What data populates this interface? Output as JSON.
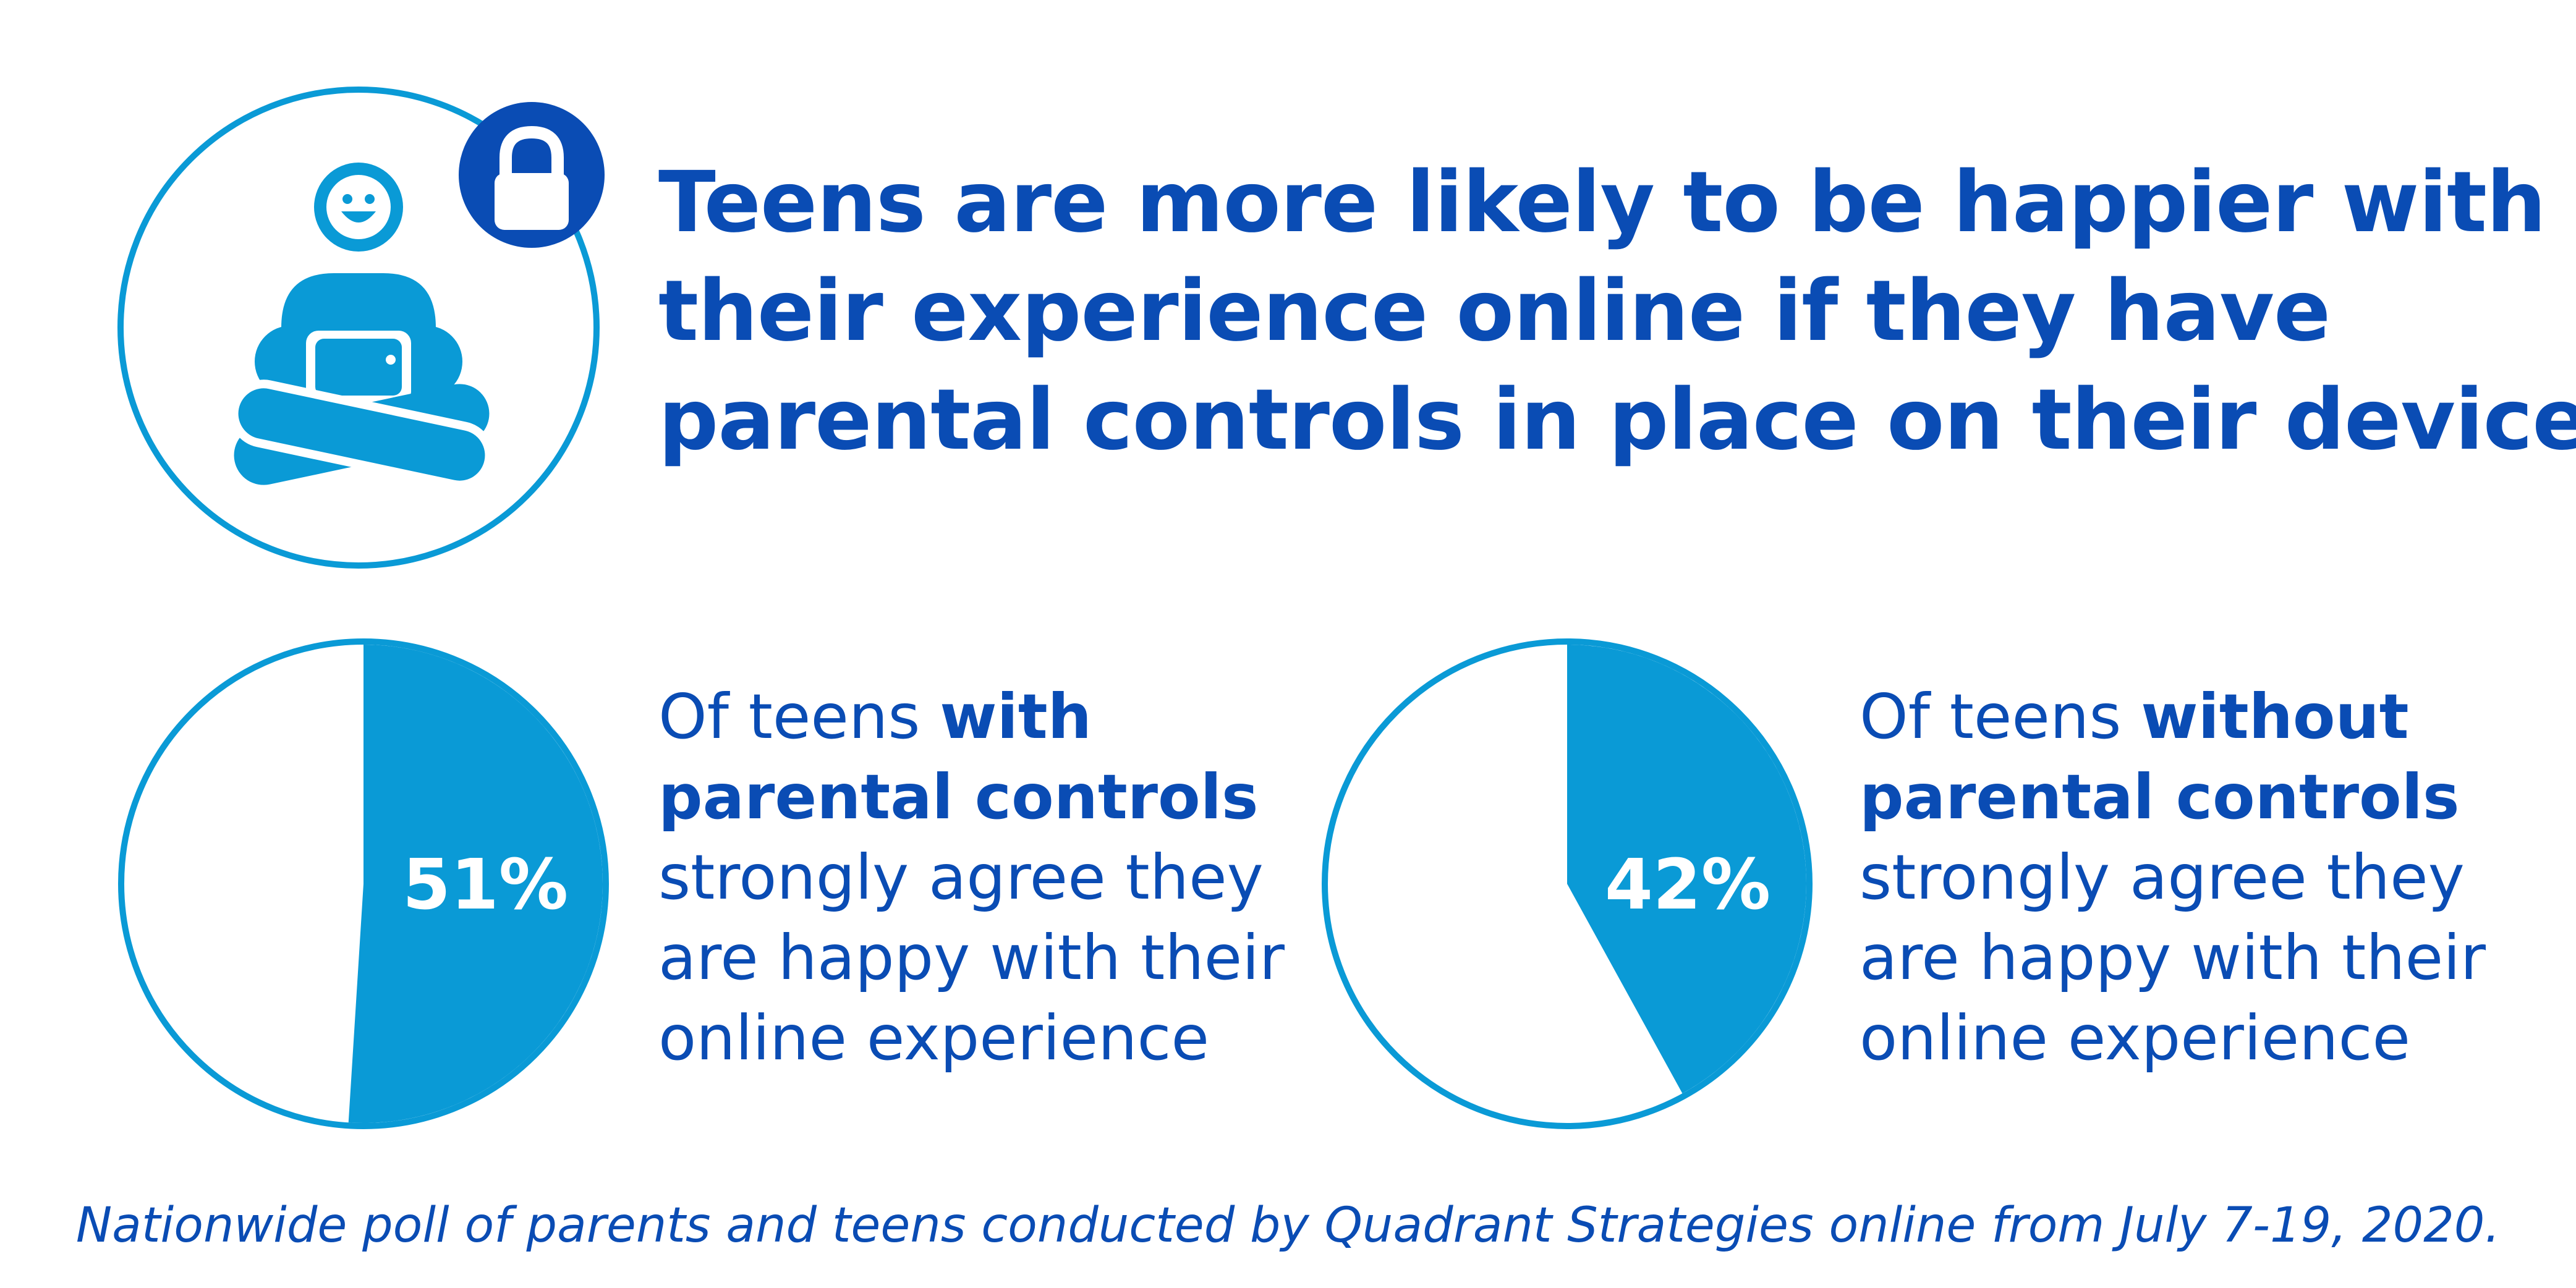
{
  "title": {
    "lines": [
      "Teens are more likely to be happier with",
      "their experience online if they have",
      "parental controls in place on their devices"
    ]
  },
  "icons": {
    "main": "teen-with-tablet-icon",
    "badge": "lock-icon"
  },
  "colors": {
    "accent": "#0a9ad6",
    "text": "#0a4cb4",
    "badge": "#0a4cb4",
    "pie_empty": "#ffffff"
  },
  "stats": [
    {
      "value_label": "51%",
      "line1_pre": "Of teens ",
      "line1_bold": "with",
      "line2_bold": "parental controls",
      "line3": "strongly agree they",
      "line4": "are happy with their",
      "line5": "online experience"
    },
    {
      "value_label": "42%",
      "line1_pre": "Of teens ",
      "line1_bold": "without",
      "line2_bold": "parental controls",
      "line3": "strongly agree they",
      "line4": "are happy with their",
      "line5": "online experience"
    }
  ],
  "footnote": "Nationwide poll of parents and teens conducted by Quadrant Strategies online from July 7-19, 2020.",
  "chart_data": [
    {
      "type": "pie",
      "categories": [
        "",
        ""
      ],
      "values": [
        51,
        49
      ],
      "value_labels": [
        "51%",
        ""
      ],
      "colors": [
        "#0a9ad6",
        "#ffffff"
      ]
    },
    {
      "type": "pie",
      "categories": [
        "",
        ""
      ],
      "values": [
        42,
        58
      ],
      "value_labels": [
        "42%",
        ""
      ],
      "colors": [
        "#0a9ad6",
        "#ffffff"
      ]
    }
  ]
}
